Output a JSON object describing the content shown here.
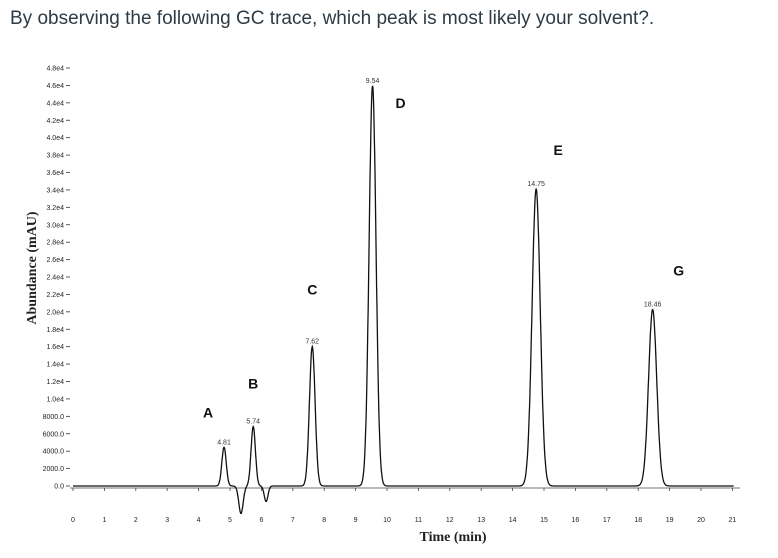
{
  "question": "By observing the following GC trace, which peak is most likely your solvent?.",
  "chart_data": {
    "type": "line",
    "xlabel": "Time (min)",
    "ylabel": "Abundance (mAU)",
    "xlim": [
      0,
      21
    ],
    "x_ticks": [
      "0",
      "1",
      "2",
      "3",
      "4",
      "5",
      "6",
      "7",
      "8",
      "9",
      "10",
      "11",
      "12",
      "13",
      "14",
      "15",
      "16",
      "17",
      "18",
      "19",
      "20",
      "21"
    ],
    "y_ticks": [
      "0.0",
      "2000.0",
      "4000.0",
      "6000.0",
      "8000.0",
      "1.0e4",
      "1.2e4",
      "1.4e4",
      "1.6e4",
      "1.8e4",
      "2.0e4",
      "2.2e4",
      "2.4e4",
      "2.6e4",
      "2.8e4",
      "3.0e4",
      "3.2e4",
      "3.4e4",
      "3.6e4",
      "3.8e4",
      "4.0e4",
      "4.2e4",
      "4.4e4",
      "4.6e4",
      "4.8e4"
    ],
    "peaks": [
      {
        "letter": "A",
        "rt": "4.81",
        "x": 4.81,
        "y": 4500
      },
      {
        "letter": "B",
        "rt": "5.74",
        "x": 5.74,
        "y": 6900
      },
      {
        "letter": "C",
        "rt": "7.62",
        "x": 7.62,
        "y": 16200
      },
      {
        "letter": "D",
        "rt": "9.54",
        "x": 9.54,
        "y": 46500
      },
      {
        "letter": "E",
        "rt": "14.75",
        "x": 14.75,
        "y": 34500
      },
      {
        "letter": "G",
        "rt": "18.46",
        "x": 18.46,
        "y": 20500
      }
    ]
  }
}
